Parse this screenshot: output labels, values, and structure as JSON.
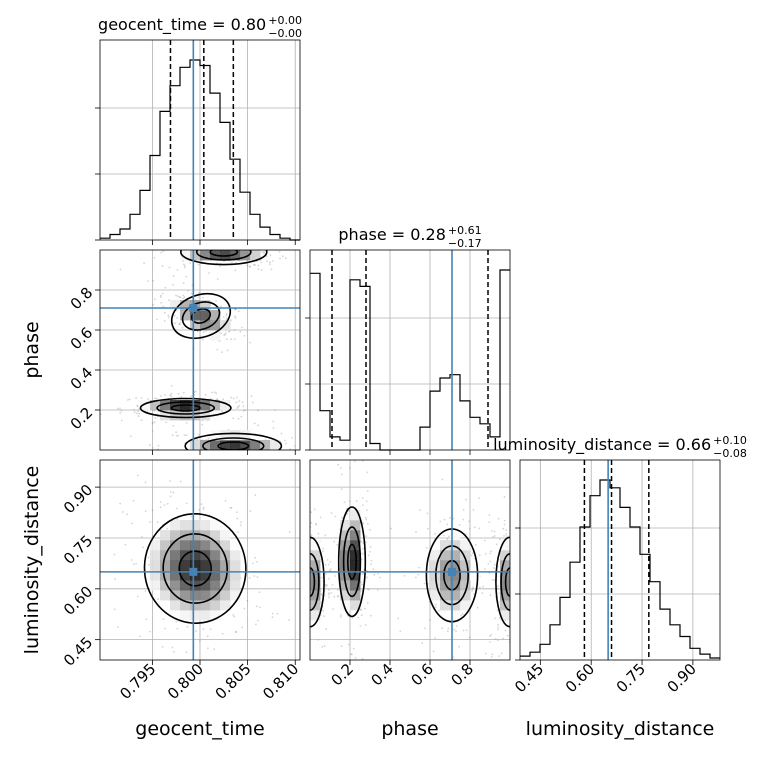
{
  "chart_data": {
    "type": "corner",
    "parameters": [
      "geocent_time",
      "phase",
      "luminosity_distance"
    ],
    "truths": {
      "geocent_time": 0.7993,
      "phase": 0.71,
      "luminosity_distance": 0.65
    },
    "panel_titles": [
      {
        "param": "geocent_time",
        "label": "geocent_time = 0.80",
        "sup": "+0.00",
        "sub": "−0.00"
      },
      {
        "param": "phase",
        "label": "phase = 0.28",
        "sup": "+0.61",
        "sub": "−0.17"
      },
      {
        "param": "luminosity_distance",
        "label": "luminosity_distance = 0.66",
        "sup": "+0.10",
        "sub": "−0.08"
      }
    ],
    "axes": {
      "geocent_time": {
        "label": "geocent_time",
        "range": [
          0.7895,
          0.8105
        ],
        "ticks": [
          0.795,
          0.8,
          0.805,
          0.81
        ],
        "ticklabels": [
          "0.795",
          "0.800",
          "0.805",
          "0.810"
        ]
      },
      "phase": {
        "label": "phase",
        "range": [
          0.0,
          1.0
        ],
        "ticks": [
          0.2,
          0.4,
          0.6,
          0.8
        ],
        "ticklabels": [
          "0.2",
          "0.4",
          "0.6",
          "0.8"
        ]
      },
      "luminosity_distance": {
        "label": "luminosity_distance",
        "range": [
          0.39,
          0.98
        ],
        "ticks": [
          0.45,
          0.6,
          0.75,
          0.9
        ],
        "ticklabels": [
          "0.45",
          "0.60",
          "0.75",
          "0.90"
        ]
      }
    },
    "quantiles": {
      "geocent_time": [
        0.7969,
        0.8004,
        0.8035
      ],
      "phase": [
        0.11,
        0.28,
        0.89
      ],
      "luminosity_distance": [
        0.58,
        0.66,
        0.77
      ]
    },
    "histograms": {
      "geocent_time": {
        "edges": [
          0.7895,
          0.79055,
          0.7916,
          0.79265,
          0.7937,
          0.79475,
          0.7958,
          0.79685,
          0.7979,
          0.79895,
          0.8,
          0.80105,
          0.8021,
          0.80315,
          0.8042,
          0.80525,
          0.8063,
          0.80735,
          0.8084,
          0.80945,
          0.8105
        ],
        "counts": [
          1,
          3,
          6,
          14,
          27,
          46,
          70,
          84,
          94,
          98,
          95,
          80,
          64,
          44,
          26,
          14,
          7,
          3,
          1,
          0
        ]
      },
      "phase": {
        "edges": [
          0.0,
          0.05,
          0.1,
          0.15,
          0.2,
          0.25,
          0.3,
          0.35,
          0.4,
          0.45,
          0.5,
          0.55,
          0.6,
          0.65,
          0.7,
          0.75,
          0.8,
          0.85,
          0.9,
          0.95,
          1.0
        ],
        "counts": [
          54,
          12,
          4,
          3,
          52,
          50,
          2,
          0,
          0,
          0,
          0,
          7,
          18,
          22,
          23,
          15,
          10,
          8,
          4,
          55
        ]
      },
      "luminosity_distance": {
        "edges": [
          0.39,
          0.4195,
          0.449,
          0.4785,
          0.508,
          0.5375,
          0.567,
          0.5965,
          0.626,
          0.6555,
          0.685,
          0.7145,
          0.744,
          0.7735,
          0.803,
          0.8325,
          0.862,
          0.8915,
          0.921,
          0.9505,
          0.98
        ],
        "counts": [
          2,
          4,
          8,
          18,
          32,
          50,
          68,
          84,
          92,
          88,
          78,
          68,
          54,
          40,
          26,
          18,
          12,
          6,
          3,
          1
        ]
      }
    },
    "pairs": [
      {
        "x": "geocent_time",
        "y": "phase",
        "blobs": [
          {
            "cx": 0.8001,
            "cy": 0.67,
            "sx": 0.0018,
            "sy": 0.06,
            "rho": -0.55,
            "w": 0.7
          },
          {
            "cx": 0.7985,
            "cy": 0.21,
            "sx": 0.0025,
            "sy": 0.025,
            "rho": 0.0,
            "w": 1.0
          },
          {
            "cx": 0.8035,
            "cy": 0.02,
            "sx": 0.0028,
            "sy": 0.035,
            "rho": 0.0,
            "w": 0.8
          },
          {
            "cx": 0.8025,
            "cy": 0.99,
            "sx": 0.0025,
            "sy": 0.035,
            "rho": 0.0,
            "w": 0.8
          }
        ]
      },
      {
        "x": "geocent_time",
        "y": "luminosity_distance",
        "blobs": [
          {
            "cx": 0.7995,
            "cy": 0.66,
            "sx": 0.0028,
            "sy": 0.085,
            "rho": -0.1,
            "w": 1.0
          }
        ]
      },
      {
        "x": "phase",
        "y": "luminosity_distance",
        "blobs": [
          {
            "cx": 0.21,
            "cy": 0.68,
            "sx": 0.035,
            "sy": 0.085,
            "rho": 0.0,
            "w": 1.0
          },
          {
            "cx": 0.71,
            "cy": 0.64,
            "sx": 0.075,
            "sy": 0.08,
            "rho": 0.0,
            "w": 0.6
          },
          {
            "cx": 0.0,
            "cy": 0.62,
            "sx": 0.04,
            "sy": 0.075,
            "rho": 0.0,
            "w": 0.7
          },
          {
            "cx": 1.0,
            "cy": 0.62,
            "sx": 0.04,
            "sy": 0.075,
            "rho": 0.0,
            "w": 0.7
          }
        ]
      }
    ],
    "colors": {
      "truth": "#4682b4",
      "line": "#000000",
      "grid": "#b0b0b0",
      "points": "#888888"
    },
    "grid": true
  }
}
